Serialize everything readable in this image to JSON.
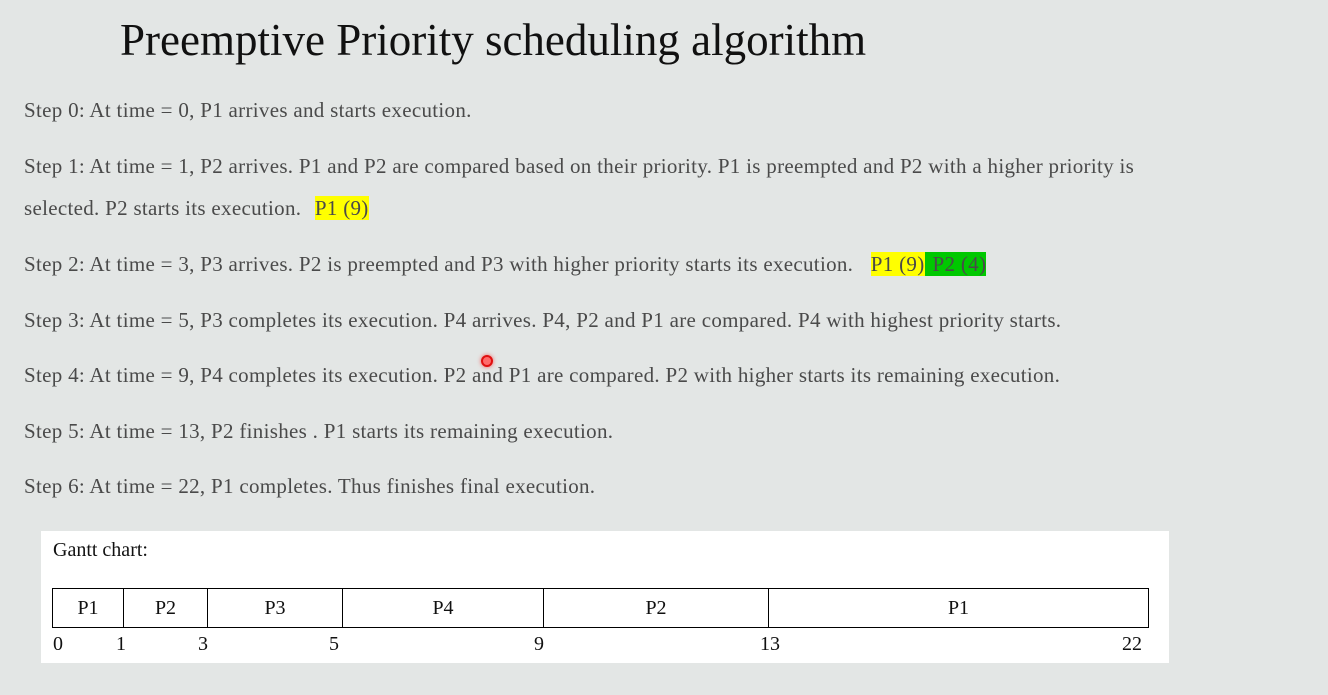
{
  "title": "Preemptive Priority scheduling algorithm",
  "steps": [
    "Step 0: At time = 0, P1 arrives and starts execution.",
    "Step 1: At time = 1, P2 arrives. P1 and P2 are compared based on their priority. P1 is preempted and P2 with a higher priority is",
    "selected. P2 starts its execution.",
    "Step 2: At time = 3, P3 arrives. P2 is preempted and P3 with higher priority starts its execution.",
    "Step 3: At time = 5, P3 completes its execution. P4 arrives. P4, P2 and P1 are compared. P4 with highest priority starts.",
    "Step 4: At time = 9, P4 completes its execution. P2 and P1 are compared. P2 with higher starts its remaining execution.",
    "Step 5: At time = 13, P2 finishes . P1 starts its remaining execution.",
    "Step 6: At time = 22, P1 completes. Thus finishes final execution."
  ],
  "highlights": {
    "step1_p1": "P1 (9)",
    "step2_p1": "P1 (9)",
    "step2_p2": "P2 (4)",
    "yellow": "#ffff00",
    "green": "#00c800"
  },
  "gantt": {
    "title": "Gantt chart:",
    "segments": [
      {
        "label": "P1",
        "start": 0,
        "end": 1
      },
      {
        "label": "P2",
        "start": 1,
        "end": 3
      },
      {
        "label": "P3",
        "start": 3,
        "end": 5
      },
      {
        "label": "P4",
        "start": 5,
        "end": 9
      },
      {
        "label": "P2",
        "start": 9,
        "end": 13
      },
      {
        "label": "P1",
        "start": 13,
        "end": 22
      }
    ],
    "ticks": [
      "0",
      "1",
      "3",
      "5",
      "9",
      "13",
      "22"
    ]
  }
}
